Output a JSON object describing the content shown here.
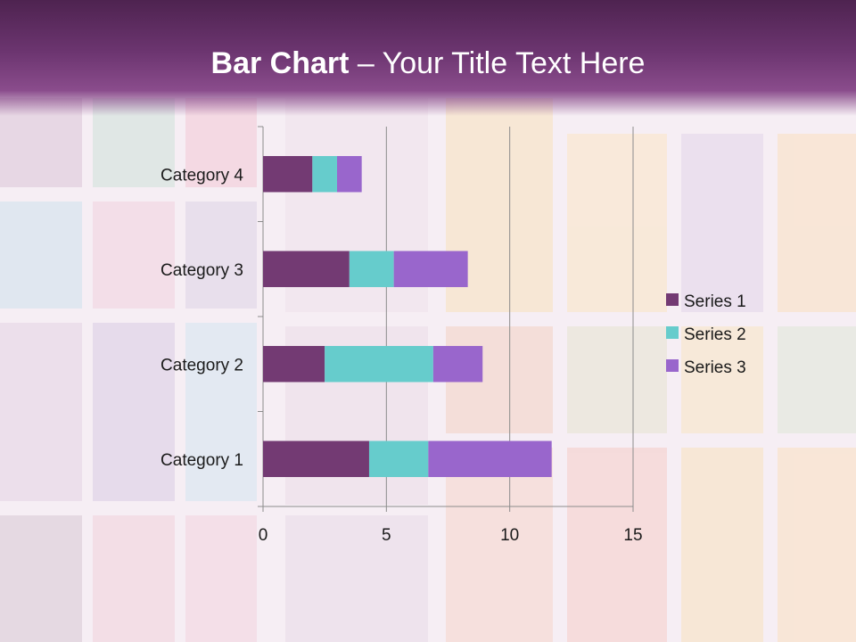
{
  "header": {
    "title_bold": "Bar Chart",
    "title_rest": " – Your Title Text Here"
  },
  "colors": {
    "header_dark": "#4e2350",
    "header_light": "#8a4c8c",
    "series1": "#733a73",
    "series2": "#66cccc",
    "series3": "#9966cc"
  },
  "chart_data": {
    "type": "bar",
    "orientation": "horizontal",
    "stacked": true,
    "categories": [
      "Category 1",
      "Category 2",
      "Category 3",
      "Category 4"
    ],
    "series": [
      {
        "name": "Series 1",
        "values": [
          4.3,
          2.5,
          3.5,
          2.0
        ],
        "color": "#733a73"
      },
      {
        "name": "Series 2",
        "values": [
          2.4,
          4.4,
          1.8,
          1.0
        ],
        "color": "#66cccc"
      },
      {
        "name": "Series 3",
        "values": [
          5.0,
          2.0,
          3.0,
          1.0
        ],
        "color": "#9966cc"
      }
    ],
    "xlim": [
      0,
      15
    ],
    "x_ticks": [
      "0",
      "5",
      "10",
      "15"
    ],
    "grid": true,
    "legend_position": "right"
  }
}
